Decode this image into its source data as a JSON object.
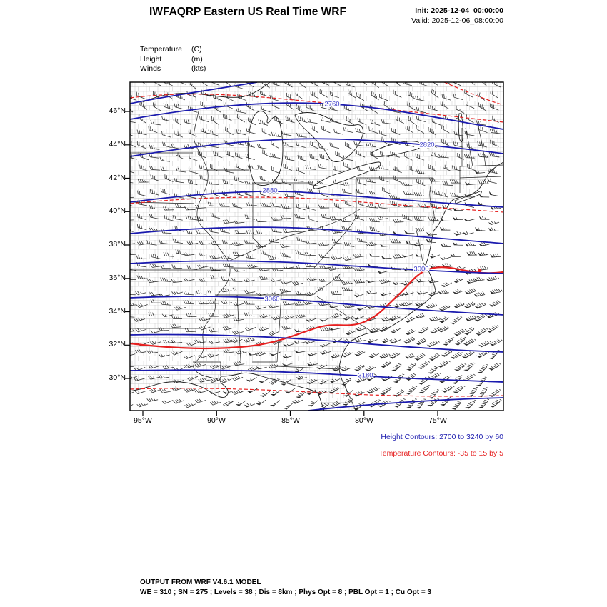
{
  "header": {
    "title": "IWFAQRP Eastern US Real Time WRF",
    "init": "Init: 2025-12-04_00:00:00",
    "valid": "Valid: 2025-12-06_08:00:00"
  },
  "legend": {
    "items": [
      {
        "name": "Temperature",
        "unit": "(C)"
      },
      {
        "name": "Height",
        "unit": "(m)"
      },
      {
        "name": "Winds",
        "unit": "(kts)"
      }
    ]
  },
  "axes": {
    "y_ticks": [
      {
        "label": "46°N"
      },
      {
        "label": "44°N"
      },
      {
        "label": "42°N"
      },
      {
        "label": "40°N"
      },
      {
        "label": "38°N"
      },
      {
        "label": "36°N"
      },
      {
        "label": "34°N"
      },
      {
        "label": "32°N"
      },
      {
        "label": "30°N"
      }
    ],
    "x_ticks": [
      {
        "label": "95°W"
      },
      {
        "label": "90°W"
      },
      {
        "label": "85°W"
      },
      {
        "label": "80°W"
      },
      {
        "label": "75°W"
      }
    ]
  },
  "contour_labels": [
    {
      "text": "2760"
    },
    {
      "text": "2820"
    },
    {
      "text": "2880"
    },
    {
      "text": "3000"
    },
    {
      "text": "3060"
    },
    {
      "text": "3180"
    }
  ],
  "captions": {
    "height": "Height Contours: 2700 to 3240 by 60",
    "temperature": "Temperature Contours: -35 to 15 by 5"
  },
  "footer": {
    "line1": "OUTPUT FROM WRF V4.6.1 MODEL",
    "line2": "WE = 310 ; SN = 275 ; Levels = 38 ; Dis = 8km ; Phys Opt = 8 ; PBL Opt = 1 ; Cu Opt = 3"
  },
  "colors": {
    "height_contour": "#1a1aae",
    "height_label": "#3b3bc8",
    "temperature_contour": "#e62020",
    "geography": "#1c1c1c",
    "county": "#9a9a9a"
  },
  "chart_data": {
    "type": "contour-map",
    "title": "IWFAQRP Eastern US Real Time WRF",
    "region": "Eastern US",
    "model": "WRF V4.6.1",
    "init_time": "2025-12-04_00:00:00",
    "valid_time": "2025-12-06_08:00:00",
    "x_axis": {
      "label": "longitude",
      "tick_labels": [
        "95°W",
        "90°W",
        "85°W",
        "80°W",
        "75°W"
      ],
      "range_deg_west": [
        96,
        70.5
      ]
    },
    "y_axis": {
      "label": "latitude",
      "tick_labels": [
        "46°N",
        "44°N",
        "42°N",
        "40°N",
        "38°N",
        "36°N",
        "34°N",
        "32°N",
        "30°N"
      ],
      "range_deg_north": [
        28,
        47.8
      ]
    },
    "fields": [
      {
        "name": "geopotential height",
        "units": "m",
        "contour_min": 2700,
        "contour_max": 3240,
        "contour_interval": 60,
        "line_style": "solid",
        "color": "dark blue",
        "visible_contour_labels": [
          2760,
          2820,
          2880,
          3000,
          3060,
          3180
        ],
        "pattern": "heights decrease northward; trough sagging southeast toward the Atlantic coast"
      },
      {
        "name": "temperature",
        "units": "C",
        "contour_min": -35,
        "contour_max": 15,
        "contour_interval": 5,
        "line_style": "dashed",
        "color": "red",
        "pattern": "wavy dashed contours near 46N and 40N; prominent thick red contour snaking along the Gulf/Southeast coast toward the Mid-Atlantic"
      },
      {
        "name": "wind",
        "units": "kts",
        "depiction": "wind barbs",
        "pattern": "dense barbs everywhere; northwesterly-to-westerly flow in the north, strong southwesterly jet with 50+ kt pennant barbs over the southeastern quadrant"
      }
    ],
    "grid_description": "state and county outlines of the eastern United States with Great Lakes, Atlantic and Gulf coasts"
  }
}
